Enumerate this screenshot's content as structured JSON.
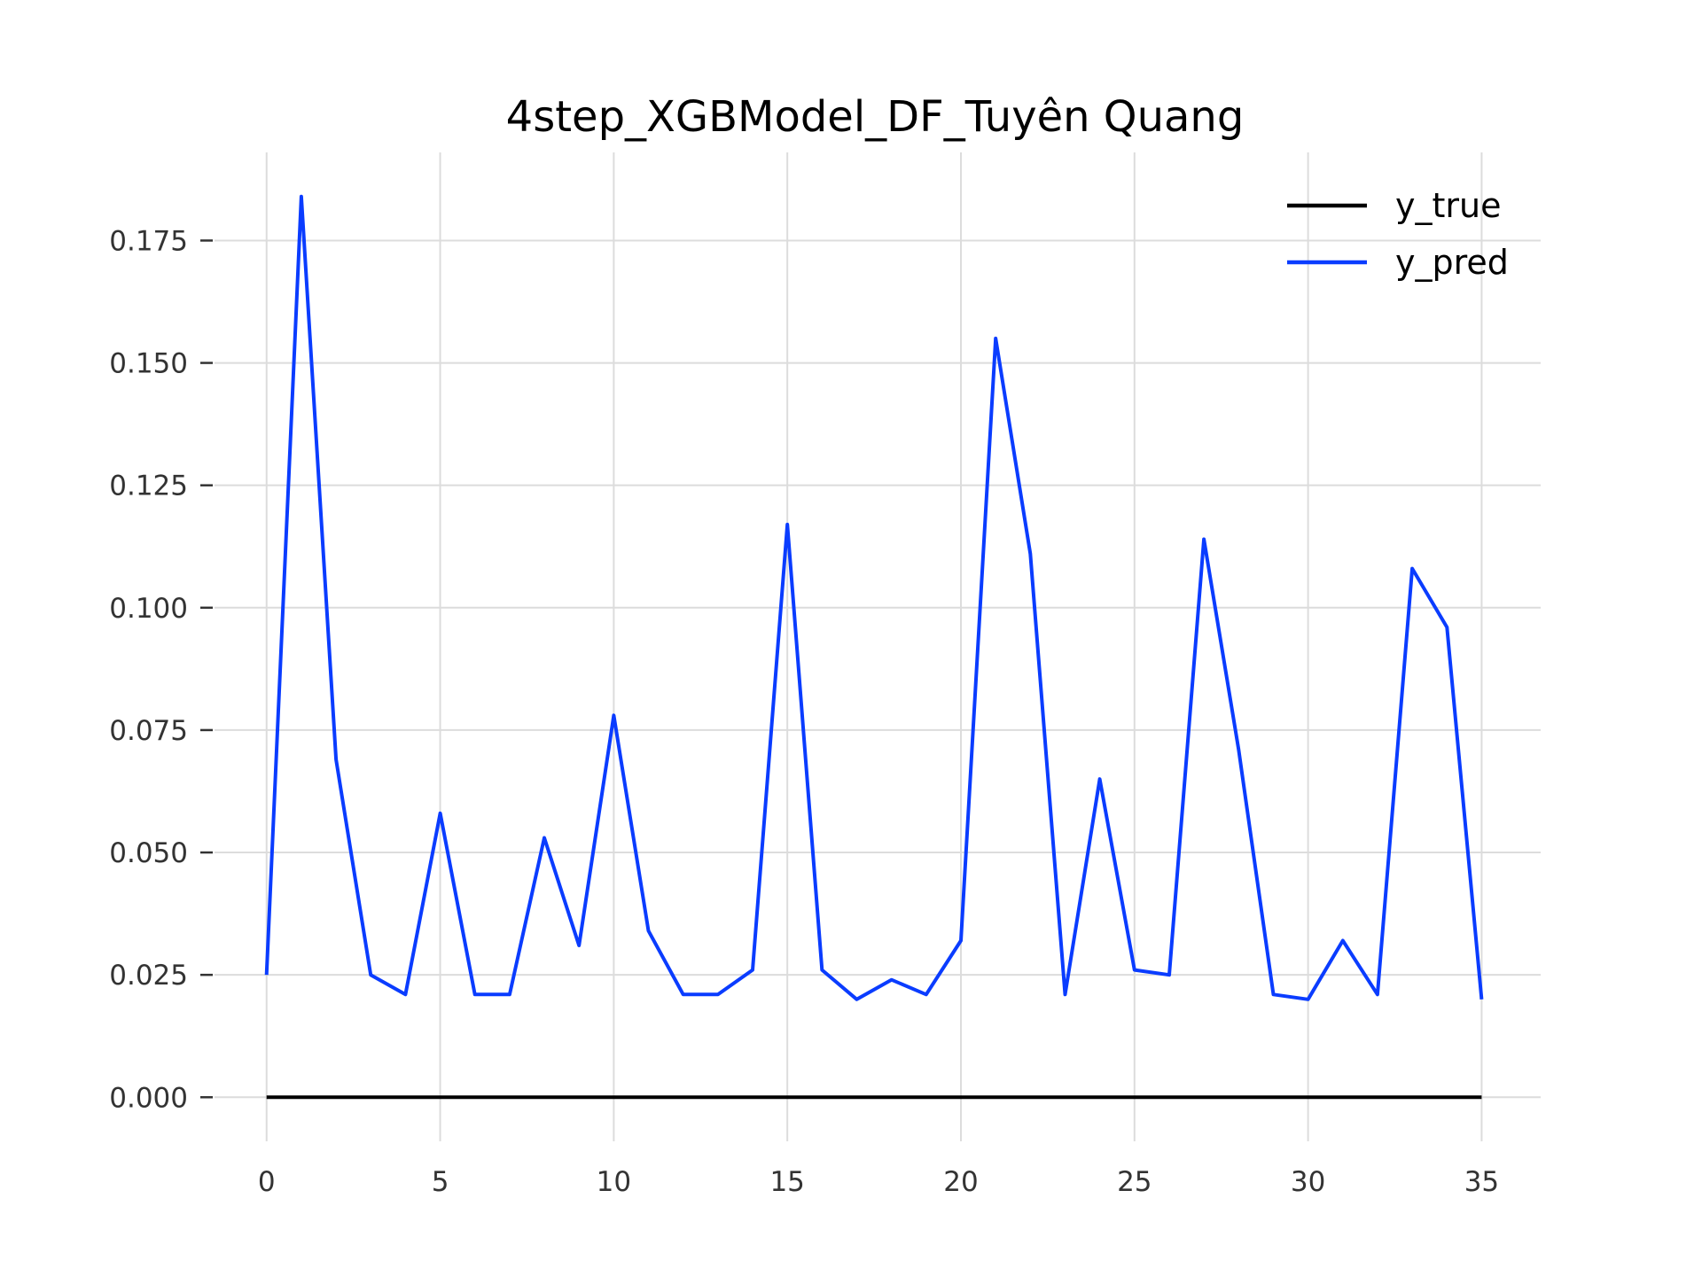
{
  "chart_data": {
    "type": "line",
    "title": "4step_XGBModel_DF_Tuyên Quang",
    "xlabel": "",
    "ylabel": "",
    "xlim": [
      -1.5,
      36.7
    ],
    "ylim": [
      -0.009,
      0.193
    ],
    "xticks": [
      0,
      5,
      10,
      15,
      20,
      25,
      30,
      35
    ],
    "xtick_labels": [
      "0",
      "5",
      "10",
      "15",
      "20",
      "25",
      "30",
      "35"
    ],
    "yticks": [
      0.0,
      0.025,
      0.05,
      0.075,
      0.1,
      0.125,
      0.15,
      0.175
    ],
    "ytick_labels": [
      "0.000",
      "0.025",
      "0.050",
      "0.075",
      "0.100",
      "0.125",
      "0.150",
      "0.175"
    ],
    "grid": true,
    "legend_position": "top-right",
    "x": [
      0,
      1,
      2,
      3,
      4,
      5,
      6,
      7,
      8,
      9,
      10,
      11,
      12,
      13,
      14,
      15,
      16,
      17,
      18,
      19,
      20,
      21,
      22,
      23,
      24,
      25,
      26,
      27,
      28,
      29,
      30,
      31,
      32,
      33,
      34,
      35
    ],
    "series": [
      {
        "name": "y_true",
        "color": "#000000",
        "values": [
          0,
          0,
          0,
          0,
          0,
          0,
          0,
          0,
          0,
          0,
          0,
          0,
          0,
          0,
          0,
          0,
          0,
          0,
          0,
          0,
          0,
          0,
          0,
          0,
          0,
          0,
          0,
          0,
          0,
          0,
          0,
          0,
          0,
          0,
          0,
          0
        ]
      },
      {
        "name": "y_pred",
        "color": "#0a3cff",
        "values": [
          0.025,
          0.184,
          0.069,
          0.025,
          0.021,
          0.058,
          0.021,
          0.021,
          0.053,
          0.031,
          0.078,
          0.034,
          0.021,
          0.021,
          0.026,
          0.117,
          0.026,
          0.02,
          0.024,
          0.021,
          0.032,
          0.155,
          0.111,
          0.021,
          0.065,
          0.026,
          0.025,
          0.114,
          0.071,
          0.021,
          0.02,
          0.032,
          0.021,
          0.108,
          0.096,
          0.02
        ]
      }
    ]
  }
}
